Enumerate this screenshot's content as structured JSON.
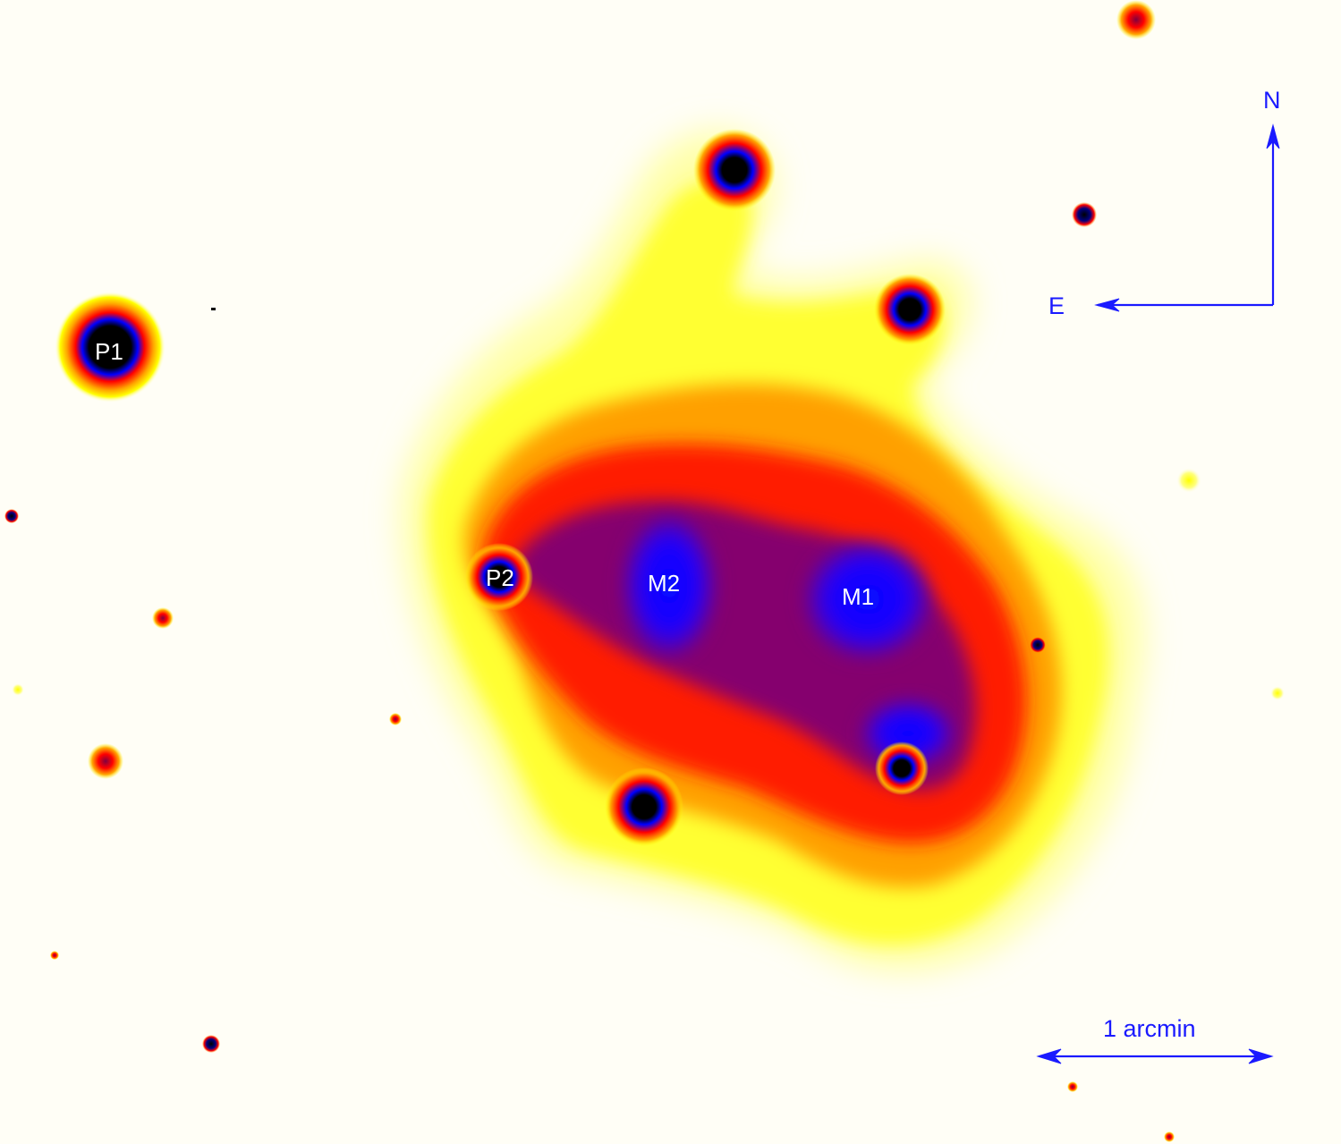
{
  "labels": {
    "p1": "P1",
    "p2": "P2",
    "m1": "M1",
    "m2": "M2"
  },
  "compass": {
    "north": "N",
    "east": "E"
  },
  "scale_bar": {
    "label": "1 arcmin"
  },
  "colors": {
    "background": "#fffef6",
    "annotation_blue": "#1a1aff",
    "label_white": "#ffffff",
    "colormap": [
      "#fffef6",
      "#ffffc8",
      "#ffff00",
      "#ffa500",
      "#ff0000",
      "#800080",
      "#0000ff",
      "#000000"
    ]
  }
}
